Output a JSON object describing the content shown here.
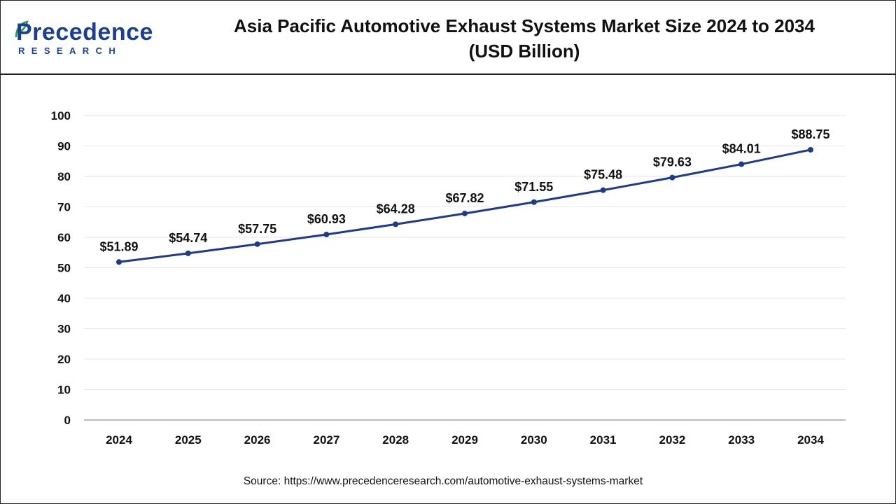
{
  "brand": {
    "name": "Precedence",
    "tagline": "RESEARCH",
    "color": "#1c3f94"
  },
  "header": {
    "title_line1": "Asia Pacific Automotive Exhaust Systems Market Size 2024 to 2034",
    "title_line2": "(USD Billion)"
  },
  "source": "Source: https://www.precedenceresearch.com/automotive-exhaust-systems-market",
  "chart_data": {
    "type": "line",
    "title": "Asia Pacific Automotive Exhaust Systems Market Size 2024 to 2034 (USD Billion)",
    "xlabel": "",
    "ylabel": "",
    "categories": [
      "2024",
      "2025",
      "2026",
      "2027",
      "2028",
      "2029",
      "2030",
      "2031",
      "2032",
      "2033",
      "2034"
    ],
    "series": [
      {
        "values": [
          51.89,
          54.74,
          57.75,
          60.93,
          64.28,
          67.82,
          71.55,
          75.48,
          79.63,
          84.01,
          88.75
        ],
        "labels": [
          "$51.89",
          "$54.74",
          "$57.75",
          "$60.93",
          "$64.28",
          "$67.82",
          "$71.55",
          "$75.48",
          "$79.63",
          "$84.01",
          "$88.75"
        ],
        "color": "#1c3a8f"
      }
    ],
    "ylim": [
      0,
      100
    ],
    "yticks": [
      0,
      10,
      20,
      30,
      40,
      50,
      60,
      70,
      80,
      90,
      100
    ],
    "grid": true,
    "legend": "none"
  }
}
